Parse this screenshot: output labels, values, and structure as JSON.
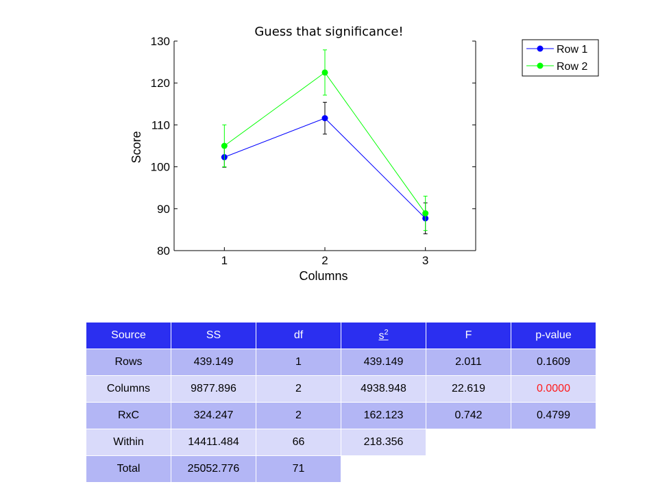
{
  "chart_data": {
    "type": "line",
    "title": "Guess that significance!",
    "xlabel": "Columns",
    "ylabel": "Score",
    "x": [
      1,
      2,
      3
    ],
    "x_ticks": [
      "1",
      "2",
      "3"
    ],
    "xlim": [
      0.5,
      3.5
    ],
    "ylim": [
      80,
      130
    ],
    "y_ticks": [
      80,
      90,
      100,
      110,
      120,
      130
    ],
    "legend_position": "top-right",
    "grid": false,
    "series": [
      {
        "name": "Row 1",
        "color": "#0000ff",
        "values": [
          102.3,
          111.6,
          87.7
        ],
        "err_low": [
          2.4,
          3.8,
          3.7
        ],
        "err_high": [
          2.4,
          3.8,
          3.7
        ]
      },
      {
        "name": "Row 2",
        "color": "#00ff00",
        "values": [
          105.0,
          122.5,
          88.9
        ],
        "err_low": [
          5.0,
          5.4,
          4.1
        ],
        "err_high": [
          5.0,
          5.4,
          4.1
        ]
      }
    ]
  },
  "table": {
    "headers": [
      "Source",
      "SS",
      "df",
      "s",
      "F",
      "p-value"
    ],
    "s2_sup": "2",
    "significant_color": "#ff1a1a",
    "rows": [
      [
        "Rows",
        "439.149",
        "1",
        "439.149",
        "2.011",
        "0.1609"
      ],
      [
        "Columns",
        "9877.896",
        "2",
        "4938.948",
        "22.619",
        "0.0000"
      ],
      [
        "RxC",
        "324.247",
        "2",
        "162.123",
        "0.742",
        "0.4799"
      ],
      [
        "Within",
        "14411.484",
        "66",
        "218.356"
      ],
      [
        "Total",
        "25052.776",
        "71"
      ]
    ]
  }
}
